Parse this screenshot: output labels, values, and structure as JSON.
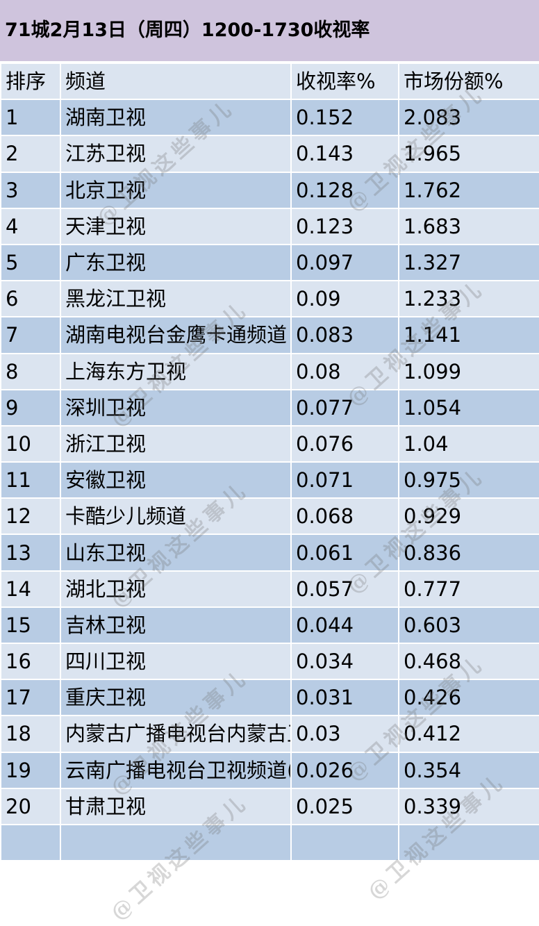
{
  "title": "71城2月13日（周四）1200-1730收视率",
  "headers": {
    "rank": "排序",
    "channel": "频道",
    "rating": "收视率%",
    "share": "市场份额%"
  },
  "rows": [
    {
      "rank": "1",
      "channel": "湖南卫视",
      "rating": "0.152",
      "share": "2.083"
    },
    {
      "rank": "2",
      "channel": "江苏卫视",
      "rating": "0.143",
      "share": "1.965"
    },
    {
      "rank": "3",
      "channel": "北京卫视",
      "rating": "0.128",
      "share": "1.762"
    },
    {
      "rank": "4",
      "channel": "天津卫视",
      "rating": "0.123",
      "share": "1.683"
    },
    {
      "rank": "5",
      "channel": "广东卫视",
      "rating": "0.097",
      "share": "1.327"
    },
    {
      "rank": "6",
      "channel": "黑龙江卫视",
      "rating": "0.09",
      "share": "1.233"
    },
    {
      "rank": "7",
      "channel": "湖南电视台金鹰卡通频道",
      "rating": "0.083",
      "share": "1.141"
    },
    {
      "rank": "8",
      "channel": "上海东方卫视",
      "rating": "0.08",
      "share": "1.099"
    },
    {
      "rank": "9",
      "channel": "深圳卫视",
      "rating": "0.077",
      "share": "1.054"
    },
    {
      "rank": "10",
      "channel": "浙江卫视",
      "rating": "0.076",
      "share": "1.04"
    },
    {
      "rank": "11",
      "channel": "安徽卫视",
      "rating": "0.071",
      "share": "0.975"
    },
    {
      "rank": "12",
      "channel": "卡酷少儿频道",
      "rating": "0.068",
      "share": "0.929"
    },
    {
      "rank": "13",
      "channel": "山东卫视",
      "rating": "0.061",
      "share": "0.836"
    },
    {
      "rank": "14",
      "channel": "湖北卫视",
      "rating": "0.057",
      "share": "0.777"
    },
    {
      "rank": "15",
      "channel": "吉林卫视",
      "rating": "0.044",
      "share": "0.603"
    },
    {
      "rank": "16",
      "channel": "四川卫视",
      "rating": "0.034",
      "share": "0.468"
    },
    {
      "rank": "17",
      "channel": "重庆卫视",
      "rating": "0.031",
      "share": "0.426"
    },
    {
      "rank": "18",
      "channel": "内蒙古广播电视台内蒙古卫",
      "rating": "0.03",
      "share": "0.412"
    },
    {
      "rank": "19",
      "channel": "云南广播电视台卫视频道(-",
      "rating": "0.026",
      "share": "0.354"
    },
    {
      "rank": "20",
      "channel": "甘肃卫视",
      "rating": "0.025",
      "share": "0.339"
    },
    {
      "rank": "",
      "channel": "",
      "rating": "",
      "share": ""
    }
  ],
  "watermark": "@卫视这些事儿",
  "colors": {
    "title_bg": "#cfc4dd",
    "row_light": "#dbe4f0",
    "row_dark": "#b8cce4"
  }
}
